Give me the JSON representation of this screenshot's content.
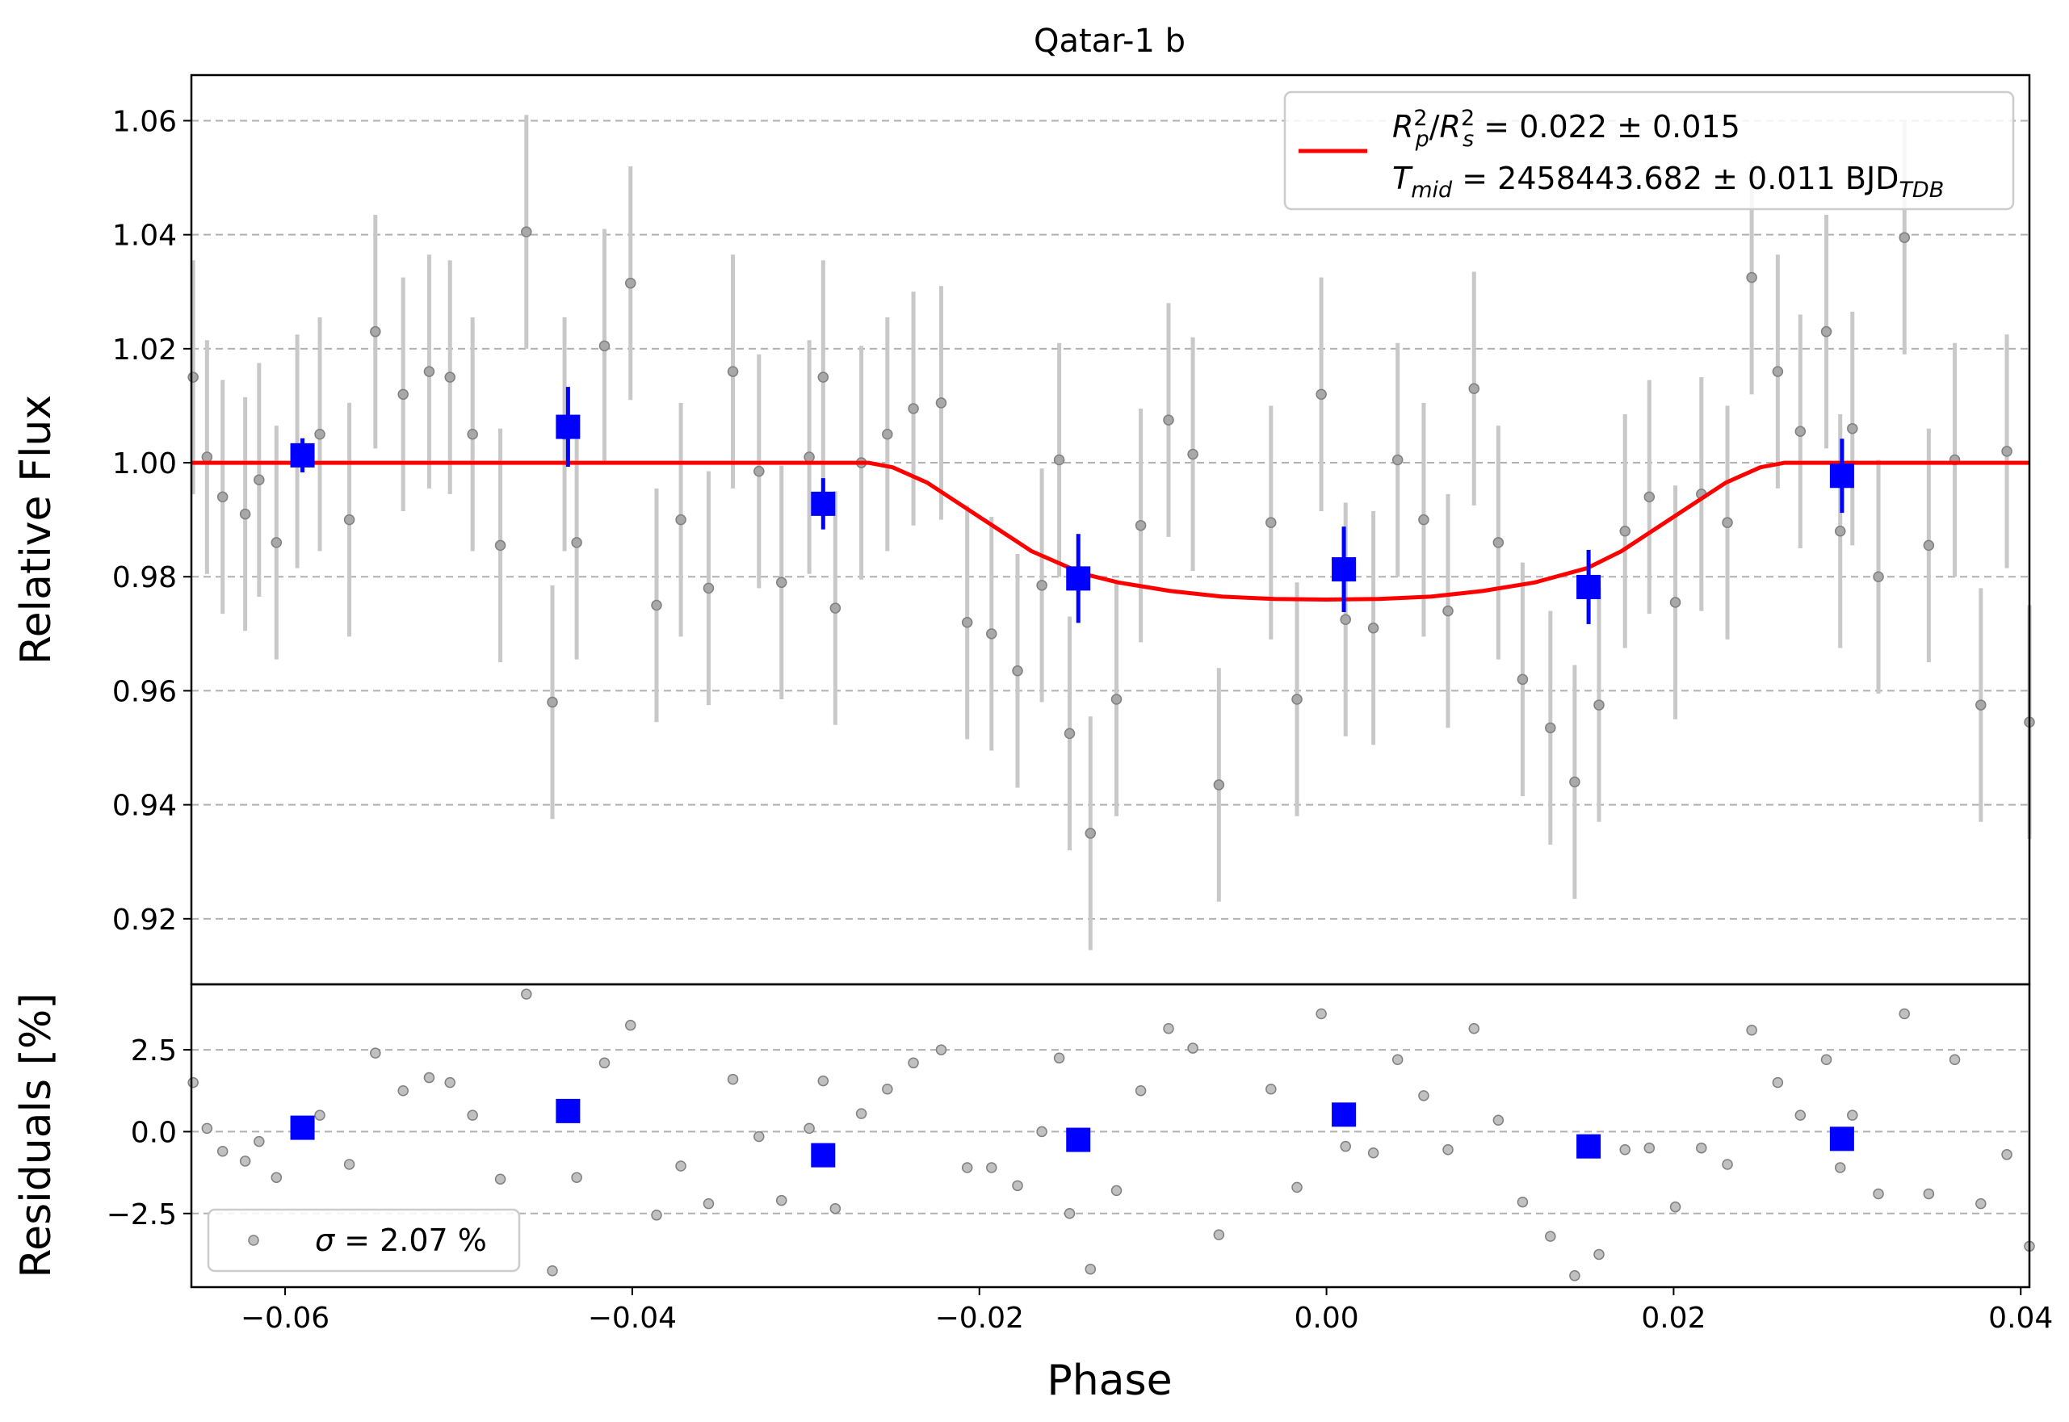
{
  "chart_data": [
    {
      "type": "scatter",
      "title": "Qatar-1 b",
      "xlabel": "",
      "ylabel": "Relative Flux",
      "xlim": [
        -0.0654,
        0.0405
      ],
      "ylim": [
        0.9085,
        1.068
      ],
      "yticks": [
        0.92,
        0.94,
        0.96,
        0.98,
        1.0,
        1.02,
        1.04,
        1.06
      ],
      "ytick_labels": [
        "0.92",
        "0.94",
        "0.96",
        "0.98",
        "1.00",
        "1.02",
        "1.04",
        "1.06"
      ],
      "grid": "horizontal dashed",
      "legend_position": "upper right",
      "legend": {
        "line1_pre": "R",
        "line1_p": "p",
        "line1_s": "s",
        "line1_val": " = 0.022 ± 0.015",
        "line2_pre": "T",
        "line2_sub": "mid",
        "line2_val": " = 2458443.682 ± 0.011 BJD",
        "line2_sub2": "TDB"
      },
      "colors": {
        "raw": "#808080",
        "raw_err": "#c8c8c8",
        "binned": "#0000ff",
        "model": "#ff0000",
        "grid": "#b0b0b0"
      },
      "raw": {
        "x": [
          -0.0653,
          -0.0645,
          -0.0636,
          -0.0623,
          -0.0615,
          -0.0605,
          -0.0593,
          -0.058,
          -0.0563,
          -0.0548,
          -0.0532,
          -0.0517,
          -0.0505,
          -0.0492,
          -0.0476,
          -0.0461,
          -0.0446,
          -0.0439,
          -0.0432,
          -0.0416,
          -0.0401,
          -0.0386,
          -0.0372,
          -0.0356,
          -0.0342,
          -0.0327,
          -0.0314,
          -0.0298,
          -0.029,
          -0.0283,
          -0.0268,
          -0.0253,
          -0.0238,
          -0.0222,
          -0.0207,
          -0.0193,
          -0.0178,
          -0.0164,
          -0.0154,
          -0.0148,
          -0.0136,
          -0.0121,
          -0.0107,
          -0.0091,
          -0.0077,
          -0.0062,
          -0.0032,
          -0.0017,
          -0.0003,
          0.0011,
          0.0027,
          0.0041,
          0.0056,
          0.007,
          0.0085,
          0.0099,
          0.0113,
          0.0129,
          0.0143,
          0.0157,
          0.0172,
          0.0186,
          0.0201,
          0.0216,
          0.0231,
          0.0245,
          0.026,
          0.0273,
          0.0288,
          0.0296,
          0.0303,
          0.0318,
          0.0333,
          0.0347,
          0.0362,
          0.0377,
          0.0392,
          0.0405
        ],
        "y": [
          1.015,
          1.001,
          0.994,
          0.991,
          0.997,
          0.986,
          1.002,
          1.005,
          0.99,
          1.023,
          1.012,
          1.016,
          1.015,
          1.005,
          0.9855,
          1.0405,
          0.958,
          1.005,
          0.986,
          1.0205,
          1.0315,
          0.975,
          0.99,
          0.978,
          1.016,
          0.9985,
          0.979,
          1.001,
          1.015,
          0.9745,
          1.0,
          1.005,
          1.0095,
          1.0105,
          0.972,
          0.97,
          0.9635,
          0.9785,
          1.0005,
          0.9525,
          0.935,
          0.9585,
          0.989,
          1.0075,
          1.0015,
          0.9435,
          0.9895,
          0.9585,
          1.012,
          0.9725,
          0.971,
          1.0005,
          0.99,
          0.974,
          1.013,
          0.986,
          0.962,
          0.9535,
          0.944,
          0.9575,
          0.988,
          0.994,
          0.9755,
          0.9945,
          0.9895,
          1.0325,
          1.016,
          1.0055,
          1.023,
          0.988,
          1.006,
          0.98,
          1.0395,
          0.9855,
          1.0005,
          0.9575,
          1.002,
          0.9545
        ],
        "err": [
          0.0205,
          0.0205,
          0.0205,
          0.0205,
          0.0205,
          0.0205,
          0.0205,
          0.0205,
          0.0205,
          0.0205,
          0.0205,
          0.0205,
          0.0205,
          0.0205,
          0.0205,
          0.0205,
          0.0205,
          0.0205,
          0.0205,
          0.0205,
          0.0205,
          0.0205,
          0.0205,
          0.0205,
          0.0205,
          0.0205,
          0.0205,
          0.0205,
          0.0205,
          0.0205,
          0.0205,
          0.0205,
          0.0205,
          0.0205,
          0.0205,
          0.0205,
          0.0205,
          0.0205,
          0.0205,
          0.0205,
          0.0205,
          0.0205,
          0.0205,
          0.0205,
          0.0205,
          0.0205,
          0.0205,
          0.0205,
          0.0205,
          0.0205,
          0.0205,
          0.0205,
          0.0205,
          0.0205,
          0.0205,
          0.0205,
          0.0205,
          0.0205,
          0.0205,
          0.0205,
          0.0205,
          0.0205,
          0.0205,
          0.0205,
          0.0205,
          0.0205,
          0.0205,
          0.0205,
          0.0205,
          0.0205,
          0.0205,
          0.0205,
          0.0205,
          0.0205,
          0.0205,
          0.0205,
          0.0205,
          0.0205
        ]
      },
      "binned": {
        "x": [
          -0.059,
          -0.0437,
          -0.029,
          -0.0143,
          0.001,
          0.0151,
          0.0297
        ],
        "y": [
          1.0013,
          1.0063,
          0.9928,
          0.9797,
          0.9813,
          0.9782,
          0.9977
        ],
        "err": [
          0.003,
          0.007,
          0.0045,
          0.0078,
          0.0075,
          0.0065,
          0.0065
        ]
      },
      "model": {
        "x": [
          -0.0654,
          -0.0264,
          -0.025,
          -0.023,
          -0.02,
          -0.017,
          -0.014,
          -0.012,
          -0.009,
          -0.006,
          -0.003,
          0.0,
          0.003,
          0.006,
          0.009,
          0.012,
          0.015,
          0.017,
          0.02,
          0.023,
          0.025,
          0.0264,
          0.0405
        ],
        "y": [
          1.0,
          1.0,
          0.9992,
          0.9965,
          0.9905,
          0.9845,
          0.9805,
          0.979,
          0.9775,
          0.9765,
          0.9761,
          0.976,
          0.9761,
          0.9765,
          0.9775,
          0.979,
          0.9815,
          0.9845,
          0.9905,
          0.9965,
          0.9992,
          1.0,
          1.0
        ]
      }
    },
    {
      "type": "scatter",
      "xlabel": "Phase",
      "ylabel": "Residuals [%]",
      "xlim": [
        -0.0654,
        0.0405
      ],
      "ylim": [
        -4.75,
        4.5
      ],
      "xticks": [
        -0.06,
        -0.04,
        -0.02,
        0.0,
        0.02,
        0.04
      ],
      "xtick_labels": [
        "−0.06",
        "−0.04",
        "−0.02",
        "0.00",
        "0.02",
        "0.04"
      ],
      "yticks": [
        -2.5,
        0.0,
        2.5
      ],
      "ytick_labels": [
        "−2.5",
        "0.0",
        "2.5"
      ],
      "grid": "horizontal dashed",
      "legend_position": "lower left",
      "legend": {
        "sigma": "σ",
        "label": " = 2.07 %"
      },
      "raw": {
        "x": [
          -0.0653,
          -0.0645,
          -0.0636,
          -0.0623,
          -0.0615,
          -0.0605,
          -0.0593,
          -0.058,
          -0.0563,
          -0.0548,
          -0.0532,
          -0.0517,
          -0.0505,
          -0.0492,
          -0.0476,
          -0.0461,
          -0.0446,
          -0.0439,
          -0.0432,
          -0.0416,
          -0.0401,
          -0.0386,
          -0.0372,
          -0.0356,
          -0.0342,
          -0.0327,
          -0.0314,
          -0.0298,
          -0.029,
          -0.0283,
          -0.0268,
          -0.0253,
          -0.0238,
          -0.0222,
          -0.0207,
          -0.0193,
          -0.0178,
          -0.0164,
          -0.0154,
          -0.0148,
          -0.0136,
          -0.0121,
          -0.0107,
          -0.0091,
          -0.0077,
          -0.0062,
          -0.0032,
          -0.0017,
          -0.0003,
          0.0011,
          0.0027,
          0.0041,
          0.0056,
          0.007,
          0.0085,
          0.0099,
          0.0113,
          0.0129,
          0.0143,
          0.0157,
          0.0172,
          0.0186,
          0.0201,
          0.0216,
          0.0231,
          0.0245,
          0.026,
          0.0273,
          0.0288,
          0.0296,
          0.0303,
          0.0318,
          0.0333,
          0.0347,
          0.0362,
          0.0377,
          0.0392,
          0.0405
        ],
        "y": [
          1.5,
          0.1,
          -0.6,
          -0.9,
          -0.3,
          -1.4,
          0.15,
          0.5,
          -1.0,
          2.4,
          1.25,
          1.65,
          1.5,
          0.5,
          -1.45,
          4.2,
          -4.25,
          0.5,
          -1.4,
          2.1,
          3.25,
          -2.55,
          -1.05,
          -2.2,
          1.6,
          -0.15,
          -2.1,
          0.1,
          1.55,
          -2.35,
          0.55,
          1.3,
          2.1,
          2.5,
          -1.1,
          -1.1,
          -1.65,
          0.0,
          2.25,
          -2.5,
          -4.2,
          -1.8,
          1.25,
          3.15,
          2.55,
          -3.15,
          1.3,
          -1.7,
          3.6,
          -0.45,
          -0.65,
          2.2,
          1.1,
          -0.55,
          3.15,
          0.35,
          -2.15,
          -3.2,
          -4.4,
          -3.75,
          -0.55,
          -0.5,
          -2.3,
          -0.5,
          -1.0,
          3.1,
          1.5,
          0.5,
          2.2,
          -1.1,
          0.5,
          -1.9,
          3.6,
          -1.9,
          2.2,
          -2.2,
          -0.7,
          -3.5
        ]
      },
      "binned": {
        "x": [
          -0.059,
          -0.0437,
          -0.029,
          -0.0143,
          0.001,
          0.0151,
          0.0297
        ],
        "y": [
          0.12,
          0.63,
          -0.72,
          -0.25,
          0.52,
          -0.45,
          -0.22
        ]
      }
    }
  ]
}
